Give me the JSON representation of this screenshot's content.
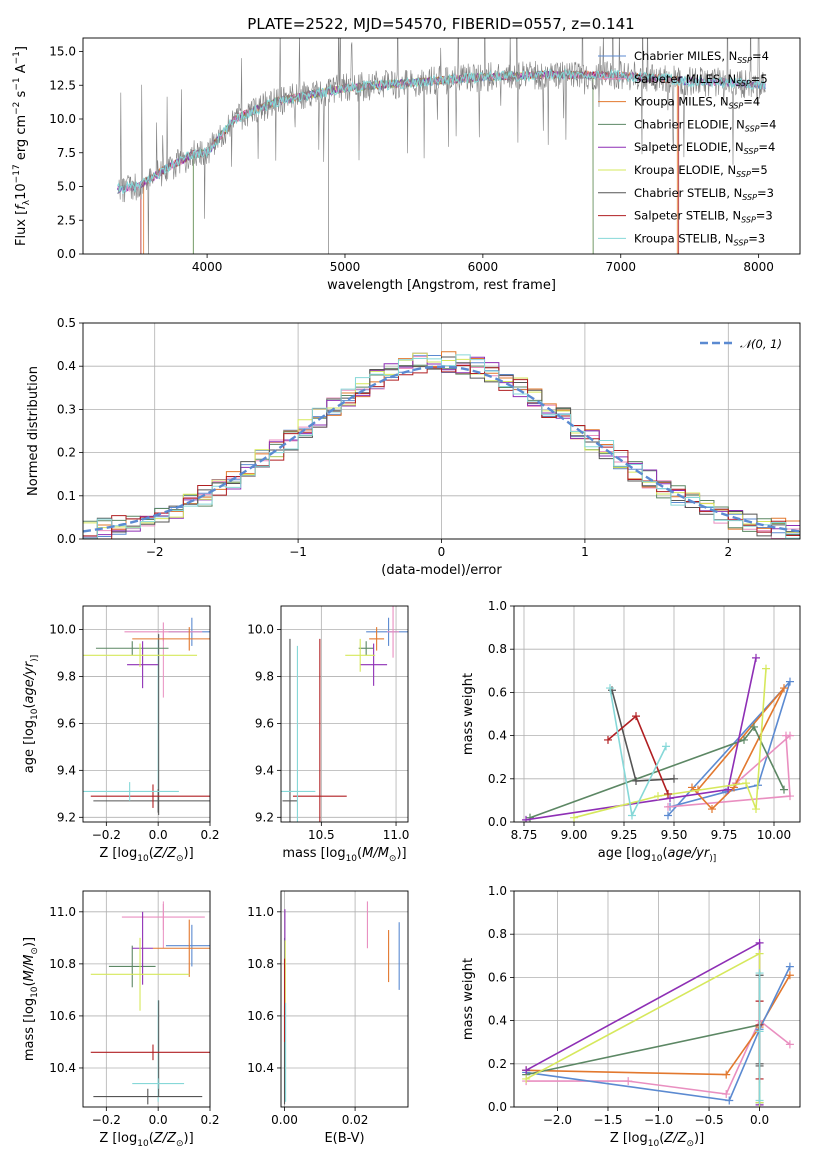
{
  "colors": {
    "chabrier_miles": "#5b8ad1",
    "salpeter_miles": "#e98fc0",
    "kroupa_miles": "#e2782e",
    "chabrier_elodie": "#5c8764",
    "salpeter_elodie": "#8e2fb5",
    "kroupa_elodie": "#d6e85c",
    "chabrier_stelib": "#555555",
    "salpeter_stelib": "#b01f22",
    "kroupa_stelib": "#86d8d8",
    "dash_curve": "#5b8ad1"
  },
  "chart_data": [
    {
      "id": "spectrum",
      "type": "line",
      "title": "PLATE=2522, MJD=54570, FIBERID=0557, z=0.141",
      "xlabel": "wavelength [Angstrom, rest frame]",
      "ylabel_parts": [
        "Flux [",
        "f",
        "λ",
        "10",
        "−17",
        " erg cm",
        "−2",
        " s",
        "−1",
        " A",
        "−1",
        "]"
      ],
      "xlim": [
        3100,
        8300
      ],
      "ylim": [
        0,
        16
      ],
      "xticks": [
        4000,
        5000,
        6000,
        7000,
        8000
      ],
      "yticks": [
        0.0,
        2.5,
        5.0,
        7.5,
        10.0,
        12.5,
        15.0
      ],
      "grid": false,
      "legend_position": "top-right",
      "spectrum_range_angstrom": [
        3350,
        8050
      ],
      "continuum": {
        "x": [
          3350,
          3500,
          3700,
          3900,
          4000,
          4200,
          4500,
          5000,
          5500,
          6000,
          6500,
          7000,
          7300,
          7500,
          7800,
          8050
        ],
        "y": [
          4.8,
          5.0,
          6.3,
          7.4,
          7.5,
          10.0,
          11.3,
          12.3,
          12.7,
          13.1,
          13.3,
          13.2,
          13.0,
          12.8,
          12.7,
          12.5
        ]
      },
      "series": [
        {
          "name_parts": [
            "Chabrier MILES, N",
            "SSP",
            "=4"
          ],
          "color_key": "chabrier_miles"
        },
        {
          "name_parts": [
            "Salpeter MILES, N",
            "SSP",
            "=5"
          ],
          "color_key": "salpeter_miles"
        },
        {
          "name_parts": [
            "Kroupa MILES, N",
            "SSP",
            "=4"
          ],
          "color_key": "kroupa_miles"
        },
        {
          "name_parts": [
            "Chabrier ELODIE, N",
            "SSP",
            "=4"
          ],
          "color_key": "chabrier_elodie"
        },
        {
          "name_parts": [
            "Salpeter ELODIE, N",
            "SSP",
            "=4"
          ],
          "color_key": "salpeter_elodie"
        },
        {
          "name_parts": [
            "Kroupa ELODIE, N",
            "SSP",
            "=5"
          ],
          "color_key": "kroupa_elodie"
        },
        {
          "name_parts": [
            "Chabrier STELIB, N",
            "SSP",
            "=3"
          ],
          "color_key": "chabrier_stelib"
        },
        {
          "name_parts": [
            "Salpeter STELIB, N",
            "SSP",
            "=3"
          ],
          "color_key": "salpeter_stelib"
        },
        {
          "name_parts": [
            "Kroupa STELIB, N",
            "SSP",
            "=3"
          ],
          "color_key": "kroupa_stelib"
        }
      ],
      "model_ranges": [
        {
          "color_key": "kroupa_elodie",
          "start": 3900,
          "end": 6800
        },
        {
          "color_key": "salpeter_stelib",
          "start": 3520,
          "end": 7420
        },
        {
          "color_key": "kroupa_miles",
          "start": 3540,
          "end": 7410
        },
        {
          "color_key": "chabrier_elodie",
          "start": 3900,
          "end": 6800
        }
      ]
    },
    {
      "id": "residuals",
      "type": "line",
      "xlabel": "(data-model)/error",
      "ylabel": "Normed distribution",
      "xlim": [
        -2.5,
        2.5
      ],
      "ylim": [
        0,
        0.5
      ],
      "xticks": [
        -2,
        -1,
        0,
        1,
        2
      ],
      "yticks": [
        0.0,
        0.1,
        0.2,
        0.3,
        0.4,
        0.5
      ],
      "grid": true,
      "legend_position": "top-right",
      "legend_label": "𝒩(0, 1)",
      "histogram": {
        "bin_start": -2.5,
        "bin_width": 0.1,
        "peak": 0.41,
        "sigma": 0.98
      }
    },
    {
      "id": "age-vs-Z",
      "type": "errorbar",
      "xlabel_parts": [
        "Z [log",
        "10",
        "(",
        "Z/Z",
        "⊙",
        ")]"
      ],
      "ylabel_parts": [
        "age  [log",
        "10",
        "(",
        "age/yr",
        ")]"
      ],
      "xlim": [
        -0.29,
        0.2
      ],
      "ylim": [
        9.18,
        10.1
      ],
      "xticks": [
        -0.2,
        0.0,
        0.2
      ],
      "yticks": [
        9.2,
        9.4,
        9.6,
        9.8,
        10.0
      ],
      "grid": true,
      "points": [
        {
          "c": "chabrier_miles",
          "x": 0.13,
          "y": 9.99,
          "ex": 0.09,
          "ey": 0.06
        },
        {
          "c": "salpeter_miles",
          "x": 0.02,
          "y": 9.99,
          "ex": 0.15,
          "ey": 0.04
        },
        {
          "c": "kroupa_miles",
          "x": 0.12,
          "y": 9.96,
          "ex": 0.22,
          "ey": 0.05
        },
        {
          "c": "chabrier_elodie",
          "x": -0.1,
          "y": 9.92,
          "ex": 0.14,
          "ey": 0.03
        },
        {
          "c": "salpeter_elodie",
          "x": -0.06,
          "y": 9.85,
          "ex": 0.06,
          "ey": 0.1
        },
        {
          "c": "kroupa_elodie",
          "x": -0.07,
          "y": 9.89,
          "ex": 0.22,
          "ey": 0.05
        },
        {
          "c": "chabrier_stelib",
          "x": 0.0,
          "y": 9.27,
          "ex": 0.25,
          "ey": 0.05
        },
        {
          "c": "salpeter_stelib",
          "x": -0.02,
          "y": 9.29,
          "ex": 0.24,
          "ey": 0.05
        },
        {
          "c": "kroupa_stelib",
          "x": -0.11,
          "y": 9.31,
          "ex": 0.19,
          "ey": 0.04
        }
      ],
      "vlines": [
        {
          "c": "kroupa_stelib",
          "x": 0.0,
          "y0": 9.23,
          "y1": 9.96
        },
        {
          "c": "chabrier_stelib",
          "x": 0.002,
          "y0": 9.21,
          "y1": 9.98
        },
        {
          "c": "salpeter_miles",
          "x": 0.02,
          "y0": 9.71,
          "y1": 9.99
        }
      ]
    },
    {
      "id": "age-vs-mass",
      "type": "errorbar",
      "xlabel_parts": [
        "mass [log",
        "10",
        "(",
        "M/M",
        "⊙",
        ")]"
      ],
      "xlim": [
        10.23,
        11.08
      ],
      "ylim": [
        9.18,
        10.1
      ],
      "xticks": [
        10.5,
        11.0
      ],
      "yticks": [
        9.2,
        9.4,
        9.6,
        9.8,
        10.0
      ],
      "grid": true,
      "points": [
        {
          "c": "chabrier_miles",
          "x": 10.95,
          "y": 9.99,
          "ex": 0.15,
          "ey": 0.06
        },
        {
          "c": "salpeter_miles",
          "x": 10.98,
          "y": 9.99,
          "ex": 0.04,
          "ey": 0.11
        },
        {
          "c": "kroupa_miles",
          "x": 10.87,
          "y": 9.96,
          "ex": 0.05,
          "ey": 0.05
        },
        {
          "c": "chabrier_elodie",
          "x": 10.8,
          "y": 9.92,
          "ex": 0.05,
          "ey": 0.03
        },
        {
          "c": "salpeter_elodie",
          "x": 10.85,
          "y": 9.85,
          "ex": 0.09,
          "ey": 0.09
        },
        {
          "c": "kroupa_elodie",
          "x": 10.76,
          "y": 9.89,
          "ex": 0.1,
          "ey": 0.07
        },
        {
          "c": "chabrier_stelib",
          "x": 10.29,
          "y": 9.27,
          "ex": 0.05,
          "ey": 0.69
        },
        {
          "c": "salpeter_stelib",
          "x": 10.49,
          "y": 9.29,
          "ex": 0.18,
          "ey": 0.67
        },
        {
          "c": "kroupa_stelib",
          "x": 10.34,
          "y": 9.31,
          "ex": 0.12,
          "ey": 0.62
        }
      ]
    },
    {
      "id": "massweight-vs-age",
      "type": "line",
      "xlabel_parts": [
        "age  [log",
        "10",
        "(",
        "age/yr",
        ")]"
      ],
      "ylabel": "mass weight",
      "xlim": [
        8.7,
        10.13
      ],
      "ylim": [
        0.0,
        1.0
      ],
      "xticks": [
        8.75,
        9.0,
        9.25,
        9.5,
        9.75,
        10.0
      ],
      "yticks": [
        0.0,
        0.2,
        0.4,
        0.6,
        0.8,
        1.0
      ],
      "grid": true,
      "series": [
        {
          "c": "chabrier_miles",
          "x": [
            9.47,
            10.08,
            9.92,
            9.76,
            9.48
          ],
          "y": [
            0.03,
            0.65,
            0.17,
            0.14,
            0.07
          ]
        },
        {
          "c": "salpeter_miles",
          "x": [
            9.47,
            10.08,
            10.06,
            10.08,
            9.81
          ],
          "y": [
            0.07,
            0.12,
            0.4,
            0.4,
            0.18
          ]
        },
        {
          "c": "kroupa_miles",
          "x": [
            9.59,
            9.69,
            9.8,
            10.05,
            9.62
          ],
          "y": [
            0.16,
            0.06,
            0.16,
            0.62,
            0.15
          ]
        },
        {
          "c": "chabrier_elodie",
          "x": [
            8.78,
            9.85,
            9.9,
            10.05
          ],
          "y": [
            0.02,
            0.38,
            0.44,
            0.15
          ]
        },
        {
          "c": "salpeter_elodie",
          "x": [
            8.76,
            9.48,
            9.77,
            9.91
          ],
          "y": [
            0.01,
            0.11,
            0.15,
            0.76
          ]
        },
        {
          "c": "kroupa_elodie",
          "x": [
            9.0,
            9.42,
            9.86,
            9.91,
            9.96
          ],
          "y": [
            0.02,
            0.12,
            0.18,
            0.06,
            0.71
          ]
        },
        {
          "c": "chabrier_stelib",
          "x": [
            9.5,
            9.31,
            9.19
          ],
          "y": [
            0.2,
            0.19,
            0.61
          ]
        },
        {
          "c": "salpeter_stelib",
          "x": [
            9.17,
            9.31,
            9.47
          ],
          "y": [
            0.38,
            0.49,
            0.13
          ]
        },
        {
          "c": "kroupa_stelib",
          "x": [
            9.18,
            9.29,
            9.46
          ],
          "y": [
            0.62,
            0.03,
            0.35
          ]
        }
      ]
    },
    {
      "id": "mass-vs-Z",
      "type": "errorbar",
      "xlabel_parts": [
        "Z [log",
        "10",
        "(",
        "Z/Z",
        "⊙",
        ")]"
      ],
      "ylabel_parts": [
        "mass [log",
        "10",
        "(",
        "M/M",
        "⊙",
        ")]"
      ],
      "xlim": [
        -0.29,
        0.2
      ],
      "ylim": [
        10.25,
        11.08
      ],
      "xticks": [
        -0.2,
        0.0,
        0.2
      ],
      "yticks": [
        10.4,
        10.6,
        10.8,
        11.0
      ],
      "grid": true,
      "points": [
        {
          "c": "chabrier_miles",
          "x": 0.13,
          "y": 10.87,
          "ex": 0.1,
          "ey": 0.08
        },
        {
          "c": "salpeter_miles",
          "x": 0.02,
          "y": 10.98,
          "ex": 0.16,
          "ey": 0.05
        },
        {
          "c": "kroupa_miles",
          "x": 0.12,
          "y": 10.86,
          "ex": 0.14,
          "ey": 0.11
        },
        {
          "c": "chabrier_elodie",
          "x": -0.1,
          "y": 10.79,
          "ex": 0.09,
          "ey": 0.08
        },
        {
          "c": "salpeter_elodie",
          "x": -0.06,
          "y": 10.86,
          "ex": 0.04,
          "ey": 0.14
        },
        {
          "c": "kroupa_elodie",
          "x": -0.07,
          "y": 10.76,
          "ex": 0.19,
          "ey": 0.14
        },
        {
          "c": "chabrier_stelib",
          "x": -0.04,
          "y": 10.29,
          "ex": 0.21,
          "ey": 0.03
        },
        {
          "c": "salpeter_stelib",
          "x": -0.02,
          "y": 10.46,
          "ex": 0.24,
          "ey": 0.03
        },
        {
          "c": "kroupa_stelib",
          "x": 0.0,
          "y": 10.34,
          "ex": 0.1,
          "ey": 0.02
        }
      ],
      "vlines": [
        {
          "c": "kroupa_stelib",
          "x": 0.0,
          "y0": 10.27,
          "y1": 10.66
        },
        {
          "c": "chabrier_stelib",
          "x": 0.002,
          "y0": 10.29,
          "y1": 10.66
        },
        {
          "c": "salpeter_miles",
          "x": 0.02,
          "y0": 10.86,
          "y1": 11.04
        }
      ]
    },
    {
      "id": "mass-vs-EBV",
      "type": "errorbar",
      "xlabel": "E(B-V)",
      "xlim": [
        -0.001,
        0.035
      ],
      "ylim": [
        10.25,
        11.08
      ],
      "xticks": [
        0.0,
        0.02
      ],
      "xtick_labels": [
        "0.00",
        "0.02"
      ],
      "yticks": [
        10.4,
        10.6,
        10.8,
        11.0
      ],
      "grid": true,
      "points": [
        {
          "c": "chabrier_miles",
          "x": 0.0325,
          "y": 10.83,
          "ex": 0.0,
          "ey": 0.13
        },
        {
          "c": "salpeter_miles",
          "x": 0.0235,
          "y": 10.95,
          "ex": 0.0,
          "ey": 0.09
        },
        {
          "c": "kroupa_miles",
          "x": 0.0295,
          "y": 10.83,
          "ex": 0.0,
          "ey": 0.1
        },
        {
          "c": "chabrier_elodie",
          "x": 0.0,
          "y": 10.6,
          "ex": 0.0,
          "ey": 0.3
        },
        {
          "c": "salpeter_elodie",
          "x": 0.0001,
          "y": 10.8,
          "ex": 0.0,
          "ey": 0.21
        },
        {
          "c": "kroupa_elodie",
          "x": 0.0002,
          "y": 10.75,
          "ex": 0.0,
          "ey": 0.14
        },
        {
          "c": "chabrier_stelib",
          "x": 0.0,
          "y": 10.45,
          "ex": 0.0,
          "ey": 0.19
        },
        {
          "c": "salpeter_stelib",
          "x": 0.0,
          "y": 10.66,
          "ex": 0.0,
          "ey": 0.16
        },
        {
          "c": "kroupa_stelib",
          "x": 0.0003,
          "y": 10.46,
          "ex": 0.0,
          "ey": 0.19
        }
      ]
    },
    {
      "id": "massweight-vs-Z",
      "type": "line",
      "xlabel_parts": [
        "Z [log",
        "10",
        "(",
        "Z/Z",
        "⊙",
        ")]"
      ],
      "ylabel": "mass weight",
      "xlim": [
        -2.43,
        0.4
      ],
      "ylim": [
        0.0,
        1.0
      ],
      "xticks": [
        -2.0,
        -1.5,
        -1.0,
        -0.5,
        0.0
      ],
      "yticks": [
        0.0,
        0.2,
        0.4,
        0.6,
        0.8,
        1.0
      ],
      "grid": true,
      "series": [
        {
          "c": "salpeter_miles",
          "x": [
            -2.31,
            -1.3,
            -0.33,
            0.0,
            0.3
          ],
          "y": [
            0.12,
            0.12,
            0.06,
            0.4,
            0.29
          ]
        },
        {
          "c": "kroupa_miles",
          "x": [
            -2.31,
            -0.33,
            0.0,
            0.3
          ],
          "y": [
            0.17,
            0.15,
            0.37,
            0.61
          ]
        },
        {
          "c": "chabrier_miles",
          "x": [
            -2.31,
            -0.3,
            0.0,
            0.3
          ],
          "y": [
            0.16,
            0.03,
            0.36,
            0.65
          ]
        },
        {
          "c": "chabrier_elodie",
          "x": [
            -2.31,
            0.0,
            0.0
          ],
          "y": [
            0.15,
            0.38,
            0.02
          ]
        },
        {
          "c": "salpeter_elodie",
          "x": [
            -2.31,
            0.0,
            0.0
          ],
          "y": [
            0.17,
            0.76,
            0.01
          ]
        },
        {
          "c": "kroupa_elodie",
          "x": [
            -2.31,
            0.0,
            0.0
          ],
          "y": [
            0.13,
            0.71,
            0.02
          ]
        },
        {
          "c": "chabrier_stelib",
          "x": [
            0.0,
            0.0,
            0.0
          ],
          "y": [
            0.61,
            0.2,
            0.19
          ]
        },
        {
          "c": "salpeter_stelib",
          "x": [
            0.0,
            0.0,
            0.0
          ],
          "y": [
            0.38,
            0.49,
            0.13
          ]
        },
        {
          "c": "kroupa_stelib",
          "x": [
            0.0,
            0.0,
            0.0
          ],
          "y": [
            0.62,
            0.03,
            0.35
          ]
        }
      ]
    }
  ]
}
